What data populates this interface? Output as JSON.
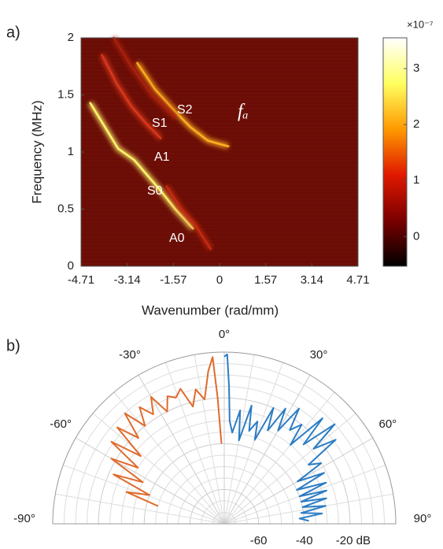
{
  "chart_data": [
    {
      "type": "line",
      "panel_label": "a)",
      "xlabel": "Wavenumber (rad/mm)",
      "ylabel": "Frequency (MHz)",
      "xlim": [
        -4.71,
        4.71
      ],
      "xticks": [
        -4.71,
        -3.14,
        -1.57,
        0,
        1.57,
        3.14,
        4.71
      ],
      "ylim": [
        0,
        2
      ],
      "yticks": [
        0,
        0.5,
        1,
        1.5,
        2
      ],
      "background": "#6a0d06",
      "series": [
        {
          "color": "#fff36a",
          "x": [
            -4.4,
            -3.9,
            -3.45,
            -2.9,
            -2.4,
            -2.0,
            -1.5,
            -0.9
          ],
          "values": [
            1.43,
            1.22,
            1.03,
            0.93,
            0.78,
            0.66,
            0.5,
            0.33
          ]
        },
        {
          "color": "#ffb020",
          "x": [
            -2.8,
            -2.2,
            -1.6,
            -1.0,
            -0.4,
            0.0,
            0.3
          ],
          "values": [
            1.78,
            1.55,
            1.38,
            1.22,
            1.1,
            1.07,
            1.05
          ]
        },
        {
          "color": "#d8381a",
          "x": [
            -4.0,
            -3.5,
            -3.0,
            -2.5,
            -2.0
          ],
          "values": [
            1.85,
            1.6,
            1.4,
            1.25,
            1.12
          ]
        },
        {
          "color": "#c42c10",
          "x": [
            -1.8,
            -1.3,
            -0.8,
            -0.3
          ],
          "values": [
            0.7,
            0.5,
            0.35,
            0.15
          ]
        },
        {
          "color": "#a8200c",
          "x": [
            -3.6,
            -3.0,
            -2.3,
            -1.5
          ],
          "values": [
            2.0,
            1.75,
            1.5,
            1.3
          ]
        }
      ],
      "annotations": [
        "S1",
        "S2",
        "A1",
        "S0",
        "A0",
        "fₐ"
      ],
      "colorbar": {
        "label": "×10⁻⁷",
        "lim": [
          -0.53,
          3.55
        ],
        "ticks": [
          0,
          1,
          2,
          3
        ],
        "colormap": [
          "#000000",
          "#7a0000",
          "#e01800",
          "#ff9a00",
          "#ffff60",
          "#ffffff"
        ]
      }
    },
    {
      "type": "polar",
      "panel_label": "b)",
      "theta_ticks": [
        {
          "value": -90,
          "label": "-90°"
        },
        {
          "value": -60,
          "label": "-60°"
        },
        {
          "value": -30,
          "label": "-30°"
        },
        {
          "value": 0,
          "label": "0°"
        },
        {
          "value": 30,
          "label": "30°"
        },
        {
          "value": 60,
          "label": "60°"
        },
        {
          "value": 90,
          "label": "90°"
        }
      ],
      "rlim": [
        -75,
        0
      ],
      "rticks": [
        -60,
        -40,
        {
          "value": -20,
          "label": "-20 dB"
        }
      ],
      "theta_grid": [
        -80,
        -70,
        -50,
        -40,
        -20,
        -10,
        10,
        20,
        40,
        50,
        70,
        80
      ],
      "r_grid": [
        -70,
        -65,
        -55,
        -50,
        -45,
        -35,
        -30,
        -25,
        -15,
        -10,
        -5
      ],
      "series": [
        {
          "color": "#e06a2c",
          "theta": [
            -75,
            -72,
            -69,
            -66,
            -63,
            -60,
            -57,
            -54,
            -51,
            -48,
            -45,
            -42,
            -39,
            -36,
            -33,
            -30,
            -27,
            -24,
            -21,
            -18,
            -15,
            -12,
            -9,
            -6,
            -4,
            -3,
            -2
          ],
          "values": [
            -45,
            -30,
            -40,
            -22,
            -35,
            -18,
            -30,
            -14,
            -28,
            -12,
            -22,
            -10,
            -20,
            -12,
            -18,
            -11,
            -20,
            -14,
            -16,
            -13,
            -22,
            -15,
            -20,
            -8,
            -2,
            -20,
            -40
          ]
        },
        {
          "color": "#2b7cc4",
          "theta": [
            0,
            1,
            2,
            3,
            5,
            8,
            10,
            13,
            15,
            18,
            20,
            23,
            25,
            28,
            30,
            33,
            35,
            38,
            40,
            43,
            45,
            48,
            50,
            53,
            55,
            58,
            60,
            63,
            65,
            68,
            70,
            72,
            74,
            76,
            78,
            80,
            82,
            84,
            86,
            88
          ],
          "values": [
            -2,
            -1,
            -15,
            -30,
            -35,
            -25,
            -38,
            -22,
            -33,
            -28,
            -36,
            -20,
            -30,
            -18,
            -28,
            -15,
            -25,
            -20,
            -30,
            -12,
            -26,
            -10,
            -24,
            -14,
            -30,
            -25,
            -38,
            -26,
            -40,
            -27,
            -40,
            -28,
            -40,
            -29,
            -40,
            -30,
            -41,
            -32,
            -42,
            -38
          ]
        }
      ]
    }
  ]
}
